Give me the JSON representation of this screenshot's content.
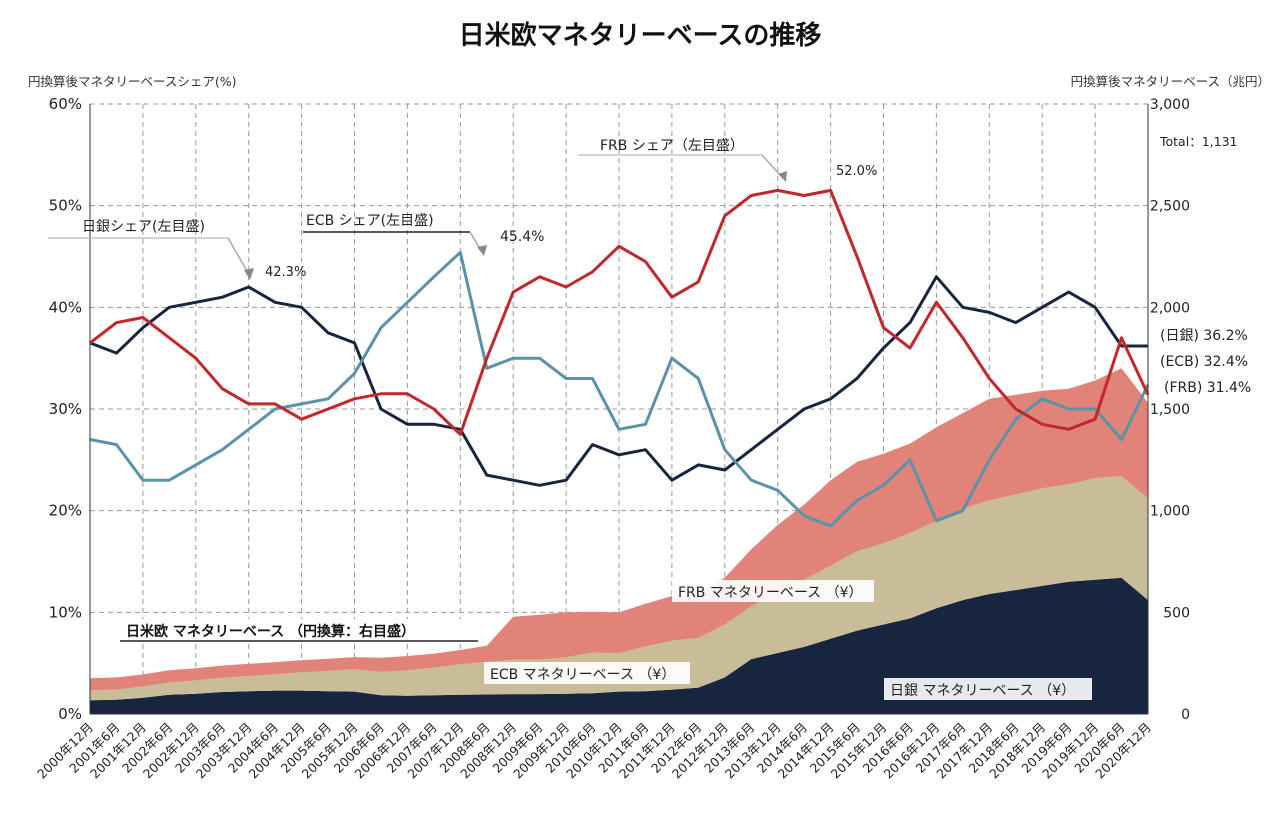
{
  "chart_data": {
    "type": "area+line",
    "title": "日米欧マネタリーベースの推移",
    "ylabel_left": "円換算後マネタリーベースシェア(%)",
    "ylabel_right": "円換算後マネタリーベース（兆円）",
    "left_axis": {
      "range": [
        0,
        60
      ],
      "ticks": [
        "0%",
        "10%",
        "20%",
        "30%",
        "40%",
        "50%",
        "60%"
      ]
    },
    "right_axis": {
      "range": [
        0,
        3000
      ],
      "ticks": [
        "0",
        "500",
        "1,000",
        "1,500",
        "2,000",
        "2,500",
        "3,000"
      ]
    },
    "x_ticks": [
      "2000年12月",
      "2001年6月",
      "2001年12月",
      "2002年6月",
      "2002年12月",
      "2003年6月",
      "2003年12月",
      "2004年6月",
      "2004年12月",
      "2005年6月",
      "2005年12月",
      "2006年6月",
      "2006年12月",
      "2007年6月",
      "2007年12月",
      "2008年6月",
      "2008年12月",
      "2009年6月",
      "2009年12月",
      "2010年6月",
      "2010年12月",
      "2011年6月",
      "2011年12月",
      "2012年6月",
      "2012年12月",
      "2013年6月",
      "2013年12月",
      "2014年6月",
      "2014年12月",
      "2015年6月",
      "2015年12月",
      "2016年6月",
      "2016年12月",
      "2017年6月",
      "2017年12月",
      "2018年6月",
      "2018年12月",
      "2019年6月",
      "2019年12月",
      "2020年6月",
      "2020年12月"
    ],
    "total_label": "Total：1,131",
    "x": [
      0,
      1,
      2,
      3,
      4,
      5,
      6,
      7,
      8,
      9,
      10,
      11,
      12,
      13,
      14,
      15,
      16,
      17,
      18,
      19,
      20,
      21,
      22,
      23,
      24,
      25,
      26,
      27,
      28,
      29,
      30,
      31,
      32,
      33,
      34,
      35,
      36,
      37,
      38,
      39,
      40
    ],
    "stack_series": [
      {
        "name": "日銀 マネタリーベース （¥）",
        "color": "#17253f",
        "values": [
          68,
          70,
          80,
          95,
          100,
          108,
          112,
          115,
          115,
          112,
          110,
          92,
          90,
          92,
          95,
          96,
          98,
          98,
          100,
          102,
          110,
          112,
          120,
          130,
          180,
          270,
          300,
          330,
          370,
          410,
          440,
          470,
          520,
          560,
          590,
          610,
          630,
          650,
          660,
          670,
          560
        ]
      },
      {
        "name": "ECB マネタリーベース （¥）",
        "color": "#c8bd98",
        "values": [
          48,
          50,
          55,
          60,
          65,
          70,
          75,
          80,
          90,
          100,
          110,
          115,
          125,
          135,
          150,
          160,
          170,
          170,
          180,
          200,
          190,
          220,
          240,
          245,
          260,
          260,
          300,
          330,
          360,
          390,
          400,
          420,
          430,
          450,
          460,
          470,
          480,
          480,
          500,
          500,
          500
        ]
      },
      {
        "name": "FRB マネタリーベース （¥）",
        "color": "#e2837a",
        "values": [
          60,
          60,
          60,
          60,
          60,
          60,
          60,
          60,
          60,
          60,
          60,
          70,
          70,
          70,
          70,
          80,
          210,
          220,
          220,
          200,
          200,
          210,
          220,
          220,
          230,
          280,
          330,
          370,
          420,
          440,
          440,
          440,
          460,
          470,
          500,
          490,
          480,
          470,
          480,
          530,
          470
        ]
      }
    ],
    "line_series": [
      {
        "name": "日銀シェア",
        "color": "#17253f",
        "end_label": "(日銀) 36.2%",
        "values": [
          36.5,
          35.5,
          38,
          40,
          40.5,
          41,
          42,
          40.5,
          40,
          37.5,
          36.5,
          30,
          28.5,
          28.5,
          28,
          23.5,
          23,
          22.5,
          23,
          26.5,
          25.5,
          26,
          23,
          24.5,
          24,
          26,
          28,
          30,
          31,
          33,
          36,
          38.5,
          43,
          40,
          39.5,
          38.5,
          40,
          41.5,
          40,
          36.2,
          36.2
        ]
      },
      {
        "name": "ECBシェア",
        "color": "#5a93a8",
        "end_label": "(ECB) 32.4%",
        "values": [
          27,
          26.5,
          23,
          23,
          24.5,
          26,
          28,
          30,
          30.5,
          31,
          33.5,
          38,
          40.5,
          43,
          45.4,
          34,
          35,
          35,
          33,
          33,
          28,
          28.5,
          35,
          33,
          26,
          23,
          22,
          19.5,
          18.5,
          21,
          22.5,
          25,
          19,
          20,
          25,
          29,
          31,
          30,
          30,
          27,
          32.4
        ]
      },
      {
        "name": "FRBシェア",
        "color": "#c0282c",
        "end_label": "(FRB) 31.4%",
        "values": [
          36.5,
          38.5,
          39,
          37,
          35,
          32,
          30.5,
          30.5,
          29,
          30,
          31,
          31.5,
          31.5,
          30,
          27.5,
          35,
          41.5,
          43,
          42,
          43.5,
          46,
          44.5,
          41,
          42.5,
          49,
          51,
          51.5,
          51,
          51.5,
          45,
          38,
          36,
          40.5,
          37,
          33,
          30,
          28.5,
          28,
          29,
          37,
          31.4
        ]
      }
    ],
    "annotations": [
      {
        "text": "日銀シェア(左目盛)",
        "type": "callout"
      },
      {
        "text": "ECB シェア(左目盛)",
        "type": "callout"
      },
      {
        "text": "FRB シェア（左目盛）",
        "type": "callout"
      },
      {
        "text": "42.3%",
        "type": "peak"
      },
      {
        "text": "45.4%",
        "type": "peak"
      },
      {
        "text": "52.0%",
        "type": "peak"
      },
      {
        "text": "日米欧 マネタリーベース （円換算：右目盛）",
        "type": "box"
      }
    ]
  }
}
